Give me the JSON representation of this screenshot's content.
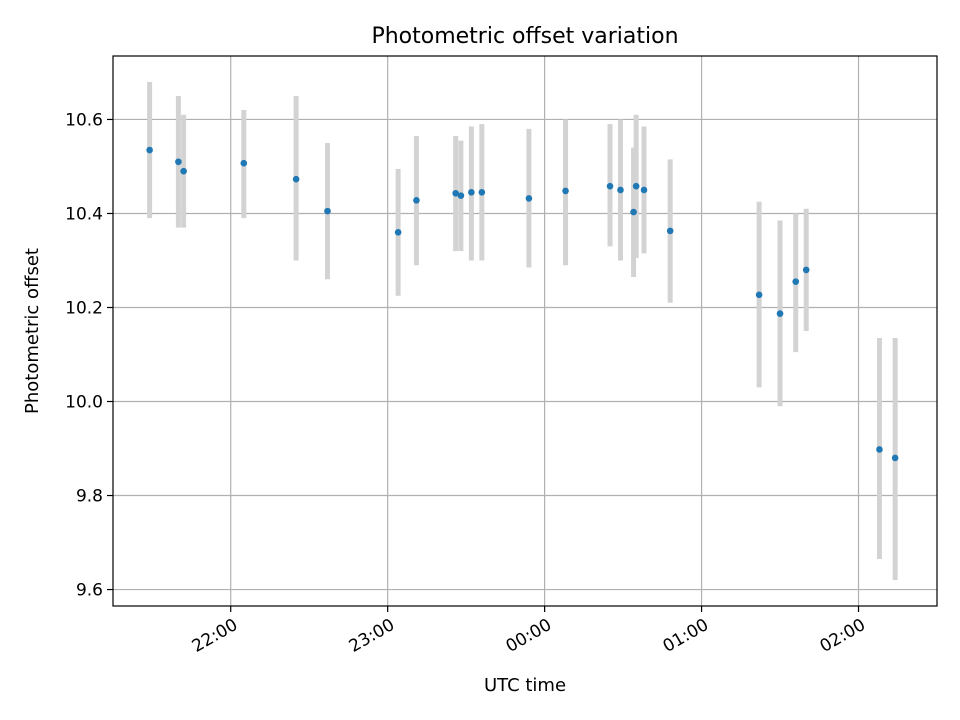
{
  "chart_data": {
    "type": "scatter",
    "title": "Photometric offset variation",
    "xlabel": "UTC time",
    "ylabel": "Photometric offset",
    "xlim": [
      "21:15",
      "02:30"
    ],
    "ylim": [
      9.565,
      10.735
    ],
    "grid": true,
    "x_ticks": [
      "22:00",
      "23:00",
      "00:00",
      "01:00",
      "02:00"
    ],
    "y_ticks": [
      "9.6",
      "9.8",
      "10.0",
      "10.2",
      "10.4",
      "10.6"
    ],
    "marker_color": "#1f77b4",
    "errorbar_color": "#d3d3d3",
    "points": [
      {
        "x": "21:29",
        "y": 10.535,
        "err_low": 10.39,
        "err_high": 10.68
      },
      {
        "x": "21:40",
        "y": 10.51,
        "err_low": 10.37,
        "err_high": 10.65
      },
      {
        "x": "21:42",
        "y": 10.49,
        "err_low": 10.37,
        "err_high": 10.61
      },
      {
        "x": "22:05",
        "y": 10.507,
        "err_low": 10.39,
        "err_high": 10.62
      },
      {
        "x": "22:25",
        "y": 10.473,
        "err_low": 10.3,
        "err_high": 10.65
      },
      {
        "x": "22:37",
        "y": 10.405,
        "err_low": 10.26,
        "err_high": 10.55
      },
      {
        "x": "23:04",
        "y": 10.36,
        "err_low": 10.225,
        "err_high": 10.495
      },
      {
        "x": "23:11",
        "y": 10.428,
        "err_low": 10.29,
        "err_high": 10.565
      },
      {
        "x": "23:26",
        "y": 10.443,
        "err_low": 10.32,
        "err_high": 10.565
      },
      {
        "x": "23:28",
        "y": 10.438,
        "err_low": 10.32,
        "err_high": 10.555
      },
      {
        "x": "23:32",
        "y": 10.445,
        "err_low": 10.3,
        "err_high": 10.585
      },
      {
        "x": "23:36",
        "y": 10.445,
        "err_low": 10.3,
        "err_high": 10.59
      },
      {
        "x": "23:54",
        "y": 10.432,
        "err_low": 10.285,
        "err_high": 10.58
      },
      {
        "x": "00:08",
        "y": 10.448,
        "err_low": 10.29,
        "err_high": 10.6
      },
      {
        "x": "00:25",
        "y": 10.458,
        "err_low": 10.33,
        "err_high": 10.59
      },
      {
        "x": "00:29",
        "y": 10.45,
        "err_low": 10.3,
        "err_high": 10.6
      },
      {
        "x": "00:34",
        "y": 10.403,
        "err_low": 10.265,
        "err_high": 10.54
      },
      {
        "x": "00:35",
        "y": 10.458,
        "err_low": 10.305,
        "err_high": 10.61
      },
      {
        "x": "00:38",
        "y": 10.45,
        "err_low": 10.315,
        "err_high": 10.585
      },
      {
        "x": "00:48",
        "y": 10.363,
        "err_low": 10.21,
        "err_high": 10.515
      },
      {
        "x": "01:22",
        "y": 10.227,
        "err_low": 10.03,
        "err_high": 10.425
      },
      {
        "x": "01:30",
        "y": 10.187,
        "err_low": 9.99,
        "err_high": 10.385
      },
      {
        "x": "01:36",
        "y": 10.255,
        "err_low": 10.105,
        "err_high": 10.4
      },
      {
        "x": "01:40",
        "y": 10.28,
        "err_low": 10.15,
        "err_high": 10.41
      },
      {
        "x": "02:08",
        "y": 9.898,
        "err_low": 9.665,
        "err_high": 10.135
      },
      {
        "x": "02:14",
        "y": 9.88,
        "err_low": 9.62,
        "err_high": 10.135
      }
    ]
  }
}
